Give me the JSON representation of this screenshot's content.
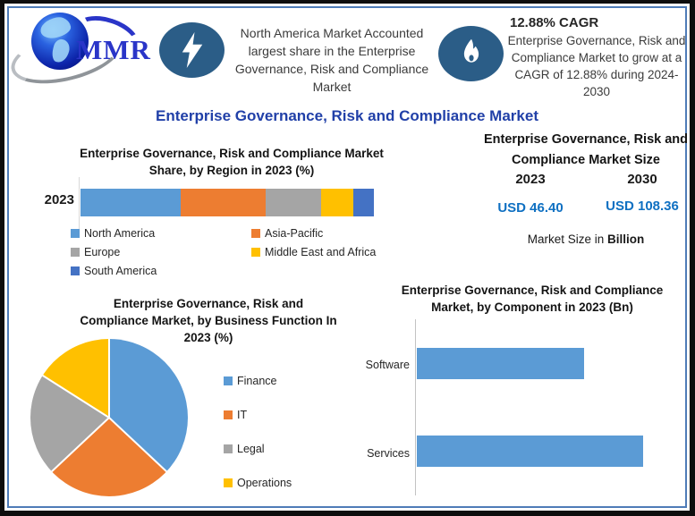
{
  "frame": {
    "border_color": "#4f7cb8",
    "background": "#ffffff"
  },
  "header": {
    "logo": {
      "text": "MMR"
    },
    "highlight_left": {
      "icon": "lightning-icon",
      "text": "North America Market Accounted largest share in the Enterprise Governance, Risk and Compliance Market"
    },
    "highlight_right": {
      "icon": "flame-icon",
      "heading": "12.88% CAGR",
      "text": "Enterprise Governance, Risk and Compliance Market to grow at a CAGR of 12.88% during 2024-2030"
    },
    "badge_color": "#2b5d87"
  },
  "main_title": "Enterprise Governance, Risk and Compliance Market",
  "market_size": {
    "title": "Enterprise Governance, Risk and Compliance Market Size",
    "columns": [
      {
        "year": "2023",
        "value": "USD 46.40"
      },
      {
        "year": "2030",
        "value": "USD 108.36"
      }
    ],
    "caption_prefix": "Market Size in ",
    "caption_bold": "Billion",
    "value_color": "#0f70c2"
  },
  "chart_data": [
    {
      "type": "bar",
      "variant": "stacked-horizontal",
      "title": "Enterprise Governance, Risk and Compliance Market Share, by Region in 2023 (%)",
      "categories": [
        "2023"
      ],
      "series": [
        {
          "name": "North America",
          "color": "#5B9BD5",
          "values": [
            34
          ]
        },
        {
          "name": "Asia-Pacific",
          "color": "#ED7D31",
          "values": [
            29
          ]
        },
        {
          "name": "Europe",
          "color": "#A5A5A5",
          "values": [
            19
          ]
        },
        {
          "name": "Middle East and Africa",
          "color": "#FFC000",
          "values": [
            11
          ]
        },
        {
          "name": "South America",
          "color": "#4472C4",
          "values": [
            7
          ]
        }
      ],
      "xlim": [
        0,
        100
      ],
      "legend_position": "bottom",
      "grid": false
    },
    {
      "type": "pie",
      "title": "Enterprise Governance, Risk and Compliance Market, by Business Function In 2023 (%)",
      "labels": [
        "Finance",
        "IT",
        "Legal",
        "Operations"
      ],
      "values": [
        37,
        26,
        21,
        16
      ],
      "colors": [
        "#5B9BD5",
        "#ED7D31",
        "#A5A5A5",
        "#FFC000"
      ],
      "start_angle_deg": 0,
      "direction": "clockwise",
      "legend_position": "right"
    },
    {
      "type": "bar",
      "variant": "horizontal",
      "title": "Enterprise Governance, Risk and Compliance Market, by Component in 2023 (Bn)",
      "categories": [
        "Software",
        "Services"
      ],
      "values": [
        0.74,
        1.0
      ],
      "axis_labels_shown": false,
      "color": "#5B9BD5",
      "grid": false
    }
  ]
}
